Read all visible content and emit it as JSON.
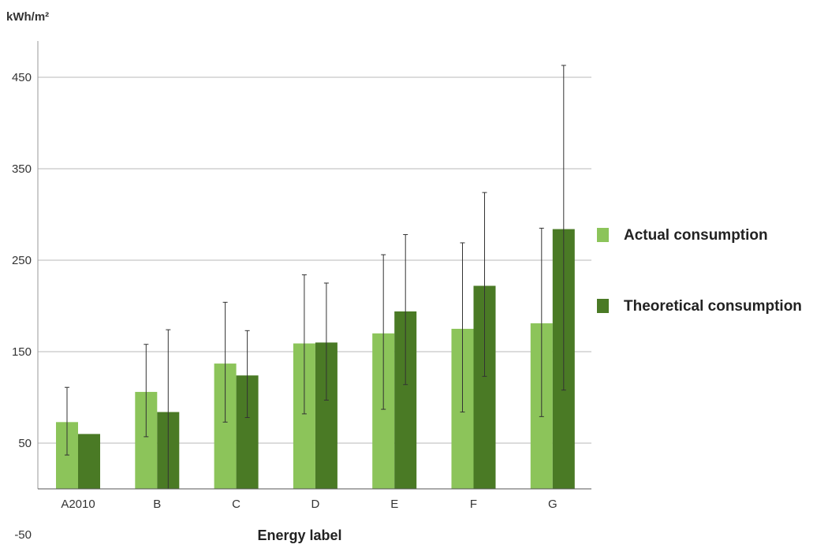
{
  "chart_data": {
    "type": "bar",
    "ylabel": "kWh/m²",
    "xlabel": "Energy label",
    "categories": [
      "A2010",
      "B",
      "C",
      "D",
      "E",
      "F",
      "G"
    ],
    "yticks": [
      -50,
      50,
      150,
      250,
      350,
      450
    ],
    "ylim": [
      -50,
      495
    ],
    "grid": true,
    "legend_position": "right",
    "series": [
      {
        "name": "Actual consumption",
        "color": "#8cc45a",
        "values": [
          73,
          106,
          137,
          159,
          170,
          175,
          181
        ],
        "error_low": [
          37,
          57,
          73,
          82,
          87,
          84,
          79
        ],
        "error_high": [
          111,
          158,
          204,
          234,
          256,
          269,
          285
        ]
      },
      {
        "name": "Theoretical consumption",
        "color": "#4a7a25",
        "values": [
          60,
          84,
          124,
          160,
          194,
          222,
          284
        ],
        "error_low": [
          60,
          0,
          78,
          97,
          114,
          123,
          108
        ],
        "error_high": [
          60,
          174,
          173,
          225,
          278,
          324,
          463
        ]
      }
    ]
  }
}
